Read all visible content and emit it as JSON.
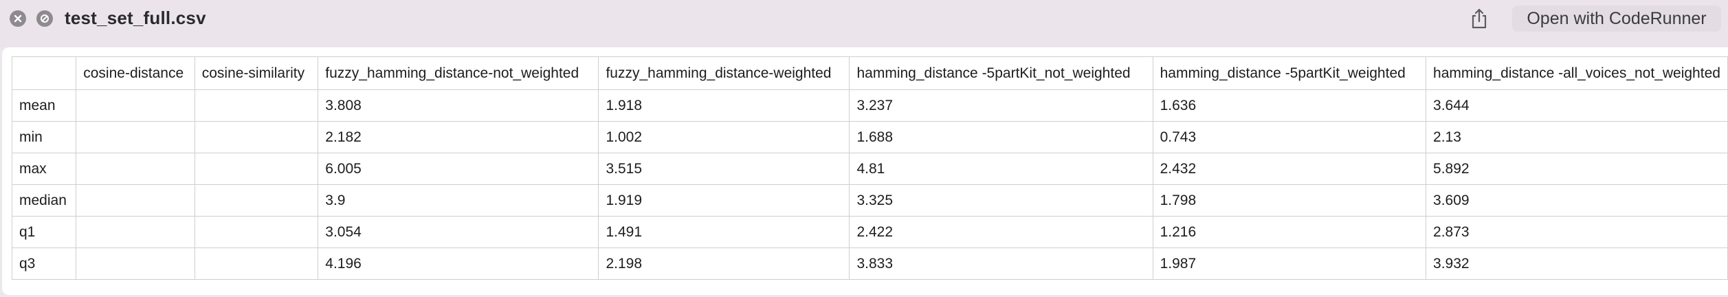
{
  "window": {
    "title": "test_set_full.csv",
    "open_with_label": "Open with CodeRunner"
  },
  "icons": {
    "close": "close-icon",
    "nav": "block-icon",
    "share": "share-icon"
  },
  "table": {
    "columns": [
      "",
      "cosine-distance",
      "cosine-similarity",
      "fuzzy_hamming_distance-not_weighted",
      "fuzzy_hamming_distance-weighted",
      "hamming_distance -5partKit_not_weighted",
      "hamming_distance -5partKit_weighted",
      "hamming_distance -all_voices_not_weighted"
    ],
    "rows": [
      [
        "mean",
        "",
        "",
        "3.808",
        "1.918",
        "3.237",
        "1.636",
        "3.644"
      ],
      [
        "min",
        "",
        "",
        "2.182",
        "1.002",
        "1.688",
        "0.743",
        "2.13"
      ],
      [
        "max",
        "",
        "",
        "6.005",
        "3.515",
        "4.81",
        "2.432",
        "5.892"
      ],
      [
        "median",
        "",
        "",
        "3.9",
        "1.919",
        "3.325",
        "1.798",
        "3.609"
      ],
      [
        "q1",
        "",
        "",
        "3.054",
        "1.491",
        "2.422",
        "1.216",
        "2.873"
      ],
      [
        "q3",
        "",
        "",
        "4.196",
        "2.198",
        "3.833",
        "1.987",
        "3.932"
      ]
    ]
  }
}
